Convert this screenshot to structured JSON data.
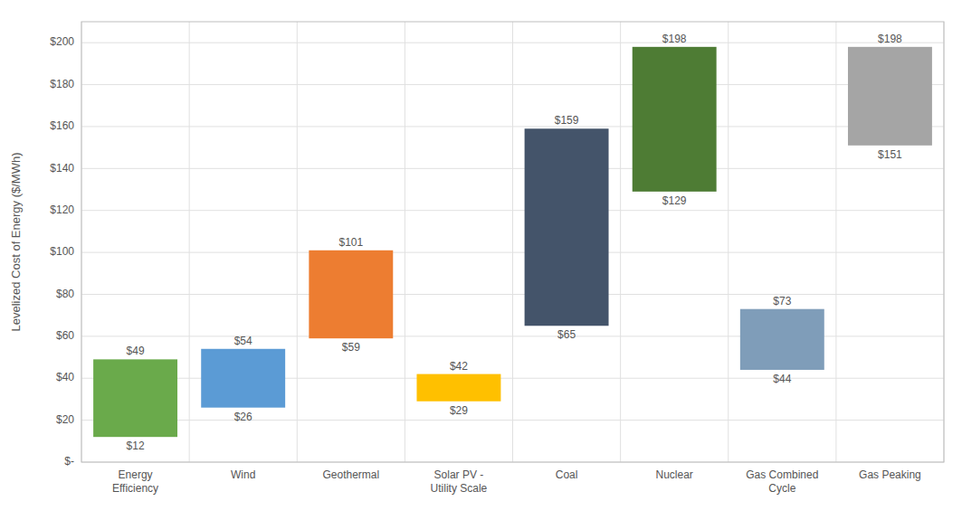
{
  "chart_data": {
    "type": "bar",
    "categories": [
      "Energy\nEfficiency",
      "Wind",
      "Geothermal",
      "Solar PV -\nUtility Scale",
      "Coal",
      "Nuclear",
      "Gas Combined\nCycle",
      "Gas Peaking"
    ],
    "values": [
      49,
      54,
      101,
      42,
      159,
      198,
      73,
      198
    ],
    "value_labels": [
      "$49",
      "$54",
      "$101",
      "$42",
      "$159",
      "$198",
      "$73",
      "$198"
    ],
    "low_values": [
      12,
      26,
      59,
      29,
      65,
      129,
      44,
      151
    ],
    "low_value_labels": [
      "$12",
      "$26",
      "$59",
      "$29",
      "$65",
      "$129",
      "$44",
      "$151"
    ],
    "colors": [
      "#6aaa4b",
      "#5b9bd5",
      "#ed7d31",
      "#ffc000",
      "#44546a",
      "#4e7c34",
      "#7f9db9",
      "#a5a5a5"
    ],
    "ylabel": "Levelized Cost of Energy ($/MWh)",
    "ylim": [
      0,
      210
    ],
    "yticks": [
      {
        "value": 0,
        "label": "$-"
      },
      {
        "value": 20,
        "label": "$20"
      },
      {
        "value": 40,
        "label": "$40"
      },
      {
        "value": 60,
        "label": "$60"
      },
      {
        "value": 80,
        "label": "$80"
      },
      {
        "value": 100,
        "label": "$100"
      },
      {
        "value": 120,
        "label": "$120"
      },
      {
        "value": 140,
        "label": "$140"
      },
      {
        "value": 160,
        "label": "$160"
      },
      {
        "value": 180,
        "label": "$180"
      },
      {
        "value": 200,
        "label": "$200"
      }
    ],
    "grid": true,
    "data_labels": true
  }
}
